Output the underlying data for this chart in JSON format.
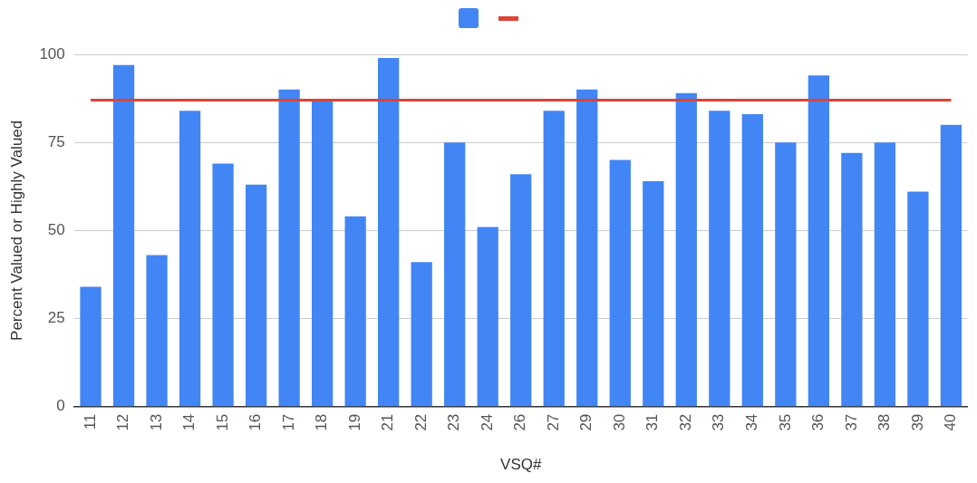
{
  "chart_data": {
    "type": "bar",
    "xlabel": "VSQ#",
    "ylabel": "Percent Valued or Highly Valued",
    "categories": [
      "11",
      "12",
      "13",
      "14",
      "15",
      "16",
      "17",
      "18",
      "19",
      "21",
      "22",
      "23",
      "24",
      "26",
      "27",
      "29",
      "30",
      "31",
      "32",
      "33",
      "34",
      "35",
      "36",
      "37",
      "38",
      "39",
      "40"
    ],
    "series": [
      {
        "color": "#4285f4",
        "values": [
          34,
          97,
          43,
          84,
          69,
          63,
          90,
          87,
          54,
          99,
          41,
          75,
          51,
          66,
          84,
          90,
          70,
          64,
          89,
          84,
          83,
          75,
          94,
          72,
          75,
          61,
          80
        ]
      },
      {
        "type": "line",
        "color": "#db4437",
        "marker": "none",
        "values": [
          87,
          87,
          87,
          87,
          87,
          87,
          87,
          87,
          87,
          87,
          87,
          87,
          87,
          87,
          87,
          87,
          87,
          87,
          87,
          87,
          87,
          87,
          87,
          87,
          87,
          87,
          87
        ]
      }
    ],
    "ylim": [
      0,
      100
    ],
    "yticks": [
      0,
      25,
      50,
      75,
      100
    ],
    "grid": "y"
  }
}
